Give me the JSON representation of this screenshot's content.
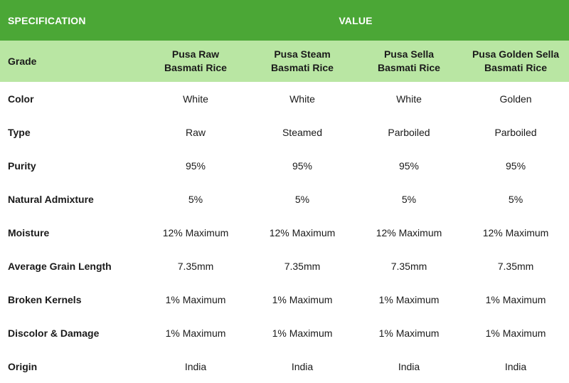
{
  "header": {
    "spec_label": "SPECIFICATION",
    "value_label": "VALUE"
  },
  "grade": {
    "label": "Grade",
    "columns": [
      {
        "line1": "Pusa Raw",
        "line2": "Basmati Rice"
      },
      {
        "line1": "Pusa Steam",
        "line2": "Basmati Rice"
      },
      {
        "line1": "Pusa Sella",
        "line2": "Basmati Rice"
      },
      {
        "line1": "Pusa Golden Sella",
        "line2": "Basmati Rice"
      }
    ]
  },
  "rows": [
    {
      "label": "Color",
      "values": [
        "White",
        "White",
        "White",
        "Golden"
      ]
    },
    {
      "label": "Type",
      "values": [
        "Raw",
        "Steamed",
        "Parboiled",
        "Parboiled"
      ]
    },
    {
      "label": "Purity",
      "values": [
        "95%",
        "95%",
        "95%",
        "95%"
      ]
    },
    {
      "label": "Natural Admixture",
      "values": [
        "5%",
        "5%",
        "5%",
        "5%"
      ]
    },
    {
      "label": "Moisture",
      "values": [
        "12% Maximum",
        "12% Maximum",
        "12% Maximum",
        "12% Maximum"
      ]
    },
    {
      "label": "Average Grain Length",
      "values": [
        "7.35mm",
        "7.35mm",
        "7.35mm",
        "7.35mm"
      ]
    },
    {
      "label": "Broken Kernels",
      "values": [
        "1% Maximum",
        "1% Maximum",
        "1% Maximum",
        "1% Maximum"
      ]
    },
    {
      "label": "Discolor & Damage",
      "values": [
        "1% Maximum",
        "1% Maximum",
        "1% Maximum",
        "1% Maximum"
      ]
    },
    {
      "label": "Origin",
      "values": [
        "India",
        "India",
        "India",
        "India"
      ]
    }
  ],
  "colors": {
    "header_bg": "#4ba736",
    "grade_bg": "#b9e6a3"
  }
}
